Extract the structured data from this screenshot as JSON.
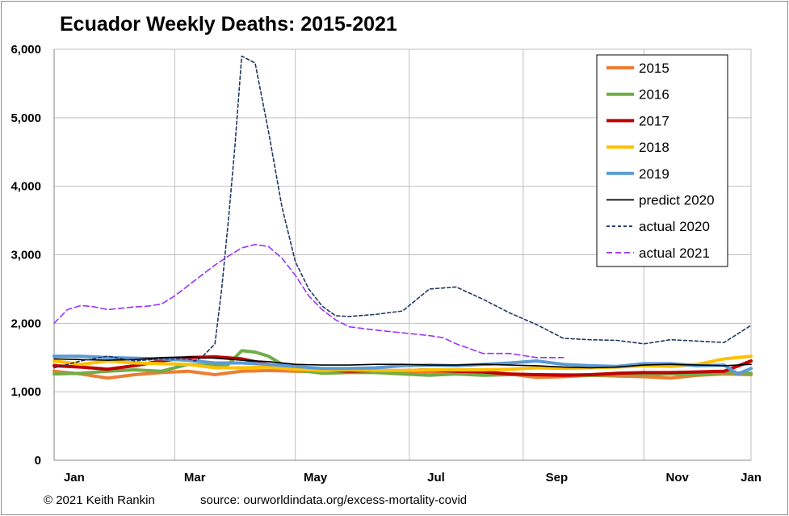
{
  "chart_data": {
    "type": "line",
    "title": "Ecuador Weekly Deaths: 2015-2021",
    "xlabel": "",
    "ylabel": "",
    "ylim": [
      0,
      6000
    ],
    "xlim": [
      0,
      52
    ],
    "yticks": [
      0,
      1000,
      2000,
      3000,
      4000,
      5000,
      6000
    ],
    "ytick_labels": [
      "0",
      "1,000",
      "2,000",
      "3,000",
      "4,000",
      "5,000",
      "6,000"
    ],
    "month_labels": [
      "Jan",
      "Mar",
      "May",
      "Jul",
      "Sep",
      "Nov",
      "Jan"
    ],
    "month_label_weeks": [
      1.5,
      10.5,
      19.5,
      28.5,
      37.5,
      46.5,
      52
    ],
    "vgrid_weeks": [
      9,
      18,
      26.5,
      35,
      44,
      52
    ],
    "grid": true,
    "legend_position": "top-right",
    "series": [
      {
        "name": "2015",
        "color": "#ED7D31",
        "style": "solid",
        "x": [
          0,
          2,
          4,
          6,
          8,
          10,
          12,
          14,
          16,
          18,
          20,
          22,
          24,
          26,
          28,
          30,
          32,
          34,
          36,
          38,
          40,
          42,
          44,
          46,
          48,
          50,
          52
        ],
        "y": [
          1300,
          1260,
          1200,
          1250,
          1280,
          1300,
          1250,
          1300,
          1310,
          1300,
          1290,
          1300,
          1290,
          1300,
          1290,
          1260,
          1250,
          1260,
          1210,
          1220,
          1240,
          1230,
          1220,
          1200,
          1240,
          1260,
          1250
        ]
      },
      {
        "name": "2016",
        "color": "#70AD47",
        "style": "solid",
        "x": [
          0,
          2,
          4,
          6,
          8,
          10,
          12,
          13,
          14,
          15,
          16,
          17,
          18,
          20,
          22,
          24,
          26,
          28,
          30,
          32,
          34,
          36,
          38,
          40,
          42,
          44,
          46,
          48,
          50,
          52
        ],
        "y": [
          1260,
          1270,
          1300,
          1320,
          1300,
          1400,
          1380,
          1400,
          1600,
          1580,
          1520,
          1400,
          1320,
          1270,
          1280,
          1280,
          1260,
          1240,
          1260,
          1240,
          1250,
          1250,
          1250,
          1240,
          1250,
          1250,
          1260,
          1250,
          1280,
          1270
        ]
      },
      {
        "name": "2017",
        "color": "#C00000",
        "style": "solid",
        "x": [
          0,
          2,
          4,
          6,
          8,
          10,
          12,
          14,
          16,
          18,
          20,
          22,
          24,
          26,
          28,
          30,
          32,
          34,
          36,
          38,
          40,
          42,
          44,
          46,
          48,
          50,
          52
        ],
        "y": [
          1380,
          1360,
          1330,
          1380,
          1450,
          1500,
          1510,
          1480,
          1400,
          1350,
          1320,
          1300,
          1310,
          1310,
          1320,
          1300,
          1290,
          1260,
          1250,
          1240,
          1250,
          1270,
          1280,
          1280,
          1290,
          1300,
          1450
        ]
      },
      {
        "name": "2018",
        "color": "#FFC000",
        "style": "solid",
        "x": [
          0,
          2,
          4,
          6,
          8,
          10,
          12,
          14,
          16,
          18,
          20,
          22,
          24,
          26,
          28,
          30,
          32,
          34,
          36,
          38,
          40,
          42,
          44,
          46,
          48,
          50,
          52
        ],
        "y": [
          1450,
          1400,
          1450,
          1420,
          1410,
          1400,
          1350,
          1350,
          1360,
          1330,
          1310,
          1320,
          1310,
          1310,
          1320,
          1320,
          1320,
          1330,
          1350,
          1340,
          1350,
          1360,
          1380,
          1370,
          1400,
          1480,
          1520
        ]
      },
      {
        "name": "2019",
        "color": "#5B9BD5",
        "style": "solid",
        "x": [
          0,
          2,
          4,
          6,
          8,
          10,
          12,
          14,
          16,
          18,
          20,
          22,
          24,
          26,
          28,
          30,
          32,
          34,
          36,
          38,
          40,
          42,
          44,
          46,
          48,
          50,
          51,
          52
        ],
        "y": [
          1520,
          1520,
          1500,
          1490,
          1480,
          1460,
          1420,
          1420,
          1400,
          1370,
          1340,
          1340,
          1350,
          1380,
          1390,
          1380,
          1400,
          1420,
          1450,
          1400,
          1380,
          1370,
          1410,
          1410,
          1380,
          1390,
          1260,
          1340
        ]
      },
      {
        "name": "predict 2020",
        "color": "#000000",
        "style": "solid",
        "x": [
          0,
          2,
          4,
          6,
          8,
          10,
          12,
          14,
          16,
          18,
          20,
          22,
          24,
          26,
          28,
          30,
          32,
          34,
          36,
          38,
          40,
          42,
          44,
          46,
          48,
          50,
          52
        ],
        "y": [
          1480,
          1470,
          1460,
          1470,
          1500,
          1510,
          1490,
          1460,
          1440,
          1400,
          1390,
          1390,
          1400,
          1400,
          1390,
          1390,
          1400,
          1390,
          1380,
          1360,
          1350,
          1360,
          1390,
          1400,
          1390,
          1380,
          1400
        ]
      },
      {
        "name": "actual 2020",
        "color": "#1F3864",
        "style": "dash",
        "x": [
          0,
          2,
          4,
          6,
          8,
          10,
          10.5,
          11,
          12,
          12.5,
          13,
          13.5,
          14,
          15,
          16,
          17,
          18,
          19,
          20,
          21,
          22,
          24,
          26,
          28,
          30,
          32,
          34,
          36,
          38,
          40,
          42,
          44,
          46,
          48,
          50,
          52
        ],
        "y": [
          1350,
          1450,
          1520,
          1450,
          1480,
          1480,
          1450,
          1500,
          1700,
          2500,
          3500,
          4600,
          5900,
          5800,
          4800,
          3700,
          2900,
          2500,
          2250,
          2110,
          2100,
          2130,
          2180,
          2500,
          2530,
          2350,
          2150,
          1980,
          1780,
          1760,
          1750,
          1700,
          1760,
          1740,
          1720,
          1970
        ]
      },
      {
        "name": "actual 2021",
        "color": "#9933FF",
        "style": "dash",
        "x": [
          0,
          1,
          2,
          3,
          4,
          5,
          6,
          7,
          8,
          9,
          10,
          11,
          12,
          13,
          14,
          15,
          16,
          17,
          18,
          19,
          20,
          21,
          22,
          24,
          26,
          28,
          29,
          30,
          32,
          34,
          36,
          38
        ],
        "y": [
          2000,
          2200,
          2260,
          2240,
          2200,
          2220,
          2240,
          2250,
          2280,
          2400,
          2550,
          2700,
          2850,
          2980,
          3100,
          3150,
          3120,
          2950,
          2700,
          2400,
          2200,
          2050,
          1950,
          1900,
          1860,
          1820,
          1790,
          1700,
          1560,
          1560,
          1500,
          1500
        ]
      }
    ]
  },
  "footer": {
    "credit": "© 2021 Keith Rankin",
    "source": "source:  ourworldindata.org/excess-mortality-covid"
  }
}
